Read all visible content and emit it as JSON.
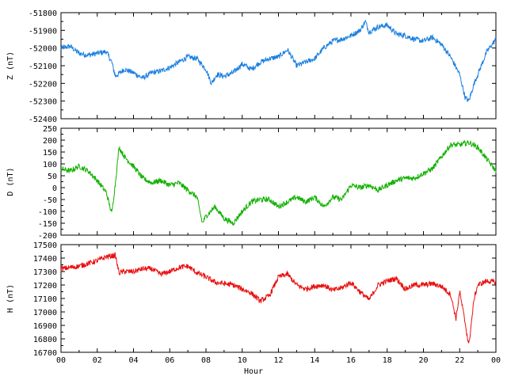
{
  "chart_data": [
    {
      "type": "line",
      "ylabel": "Z (nT)",
      "ylim": [
        -52400,
        -51800
      ],
      "yticks": [
        -52400,
        -52300,
        -52200,
        -52100,
        -52000,
        -51900,
        -51800
      ],
      "color": "#1a7fe0",
      "xlim": [
        0,
        24
      ],
      "series": [
        {
          "x": [
            0,
            0.5,
            1,
            1.5,
            2,
            2.5,
            2.8,
            3,
            3.5,
            4,
            4.5,
            5,
            5.5,
            6,
            6.5,
            7,
            7.5,
            8,
            8.3,
            8.6,
            9,
            9.5,
            10,
            10.5,
            11,
            11.5,
            12,
            12.5,
            13,
            13.5,
            14,
            14.5,
            15,
            15.5,
            16,
            16.5,
            16.8,
            17,
            17.5,
            18,
            18.5,
            19,
            19.5,
            20,
            20.5,
            21,
            21.5,
            22,
            22.3,
            22.5,
            22.8,
            23,
            23.5,
            24
          ],
          "y": [
            -52000,
            -51990,
            -52030,
            -52040,
            -52030,
            -52020,
            -52080,
            -52160,
            -52120,
            -52140,
            -52170,
            -52140,
            -52130,
            -52110,
            -52080,
            -52050,
            -52060,
            -52120,
            -52200,
            -52150,
            -52160,
            -52140,
            -52090,
            -52120,
            -52080,
            -52060,
            -52050,
            -52010,
            -52100,
            -52080,
            -52060,
            -52000,
            -51960,
            -51950,
            -51930,
            -51900,
            -51850,
            -51910,
            -51880,
            -51870,
            -51920,
            -51930,
            -51950,
            -51960,
            -51940,
            -51980,
            -52050,
            -52150,
            -52280,
            -52300,
            -52200,
            -52150,
            -52020,
            -51950
          ]
        }
      ]
    },
    {
      "type": "line",
      "ylabel": "D (nT)",
      "ylim": [
        -200,
        250
      ],
      "yticks": [
        -200,
        -150,
        -100,
        -50,
        0,
        50,
        100,
        150,
        200,
        250
      ],
      "color": "#11b000",
      "xlim": [
        0,
        24
      ],
      "series": [
        {
          "x": [
            0,
            0.5,
            1,
            1.5,
            2,
            2.5,
            2.8,
            3,
            3.2,
            3.5,
            4,
            4.5,
            5,
            5.5,
            6,
            6.5,
            7,
            7.5,
            7.8,
            8,
            8.5,
            9,
            9.5,
            10,
            10.5,
            11,
            11.5,
            12,
            12.5,
            13,
            13.5,
            14,
            14.5,
            15,
            15.5,
            16,
            16.5,
            17,
            17.5,
            18,
            18.5,
            19,
            19.5,
            20,
            20.5,
            21,
            21.5,
            22,
            22.5,
            23,
            23.5,
            24
          ],
          "y": [
            80,
            70,
            90,
            70,
            30,
            -20,
            -110,
            20,
            170,
            130,
            90,
            40,
            20,
            30,
            10,
            20,
            -10,
            -40,
            -150,
            -120,
            -80,
            -130,
            -150,
            -100,
            -60,
            -50,
            -50,
            -80,
            -60,
            -40,
            -60,
            -40,
            -80,
            -40,
            -50,
            10,
            0,
            10,
            -10,
            10,
            30,
            40,
            40,
            60,
            80,
            130,
            180,
            180,
            190,
            170,
            120,
            70
          ]
        }
      ]
    },
    {
      "type": "line",
      "ylabel": "H (nT)",
      "xlabel": "Hour",
      "ylim": [
        16700,
        17500
      ],
      "yticks": [
        16700,
        16800,
        16900,
        17000,
        17100,
        17200,
        17300,
        17400,
        17500
      ],
      "color": "#e81010",
      "xlim": [
        0,
        24
      ],
      "xticks": [
        "00",
        "02",
        "04",
        "06",
        "08",
        "10",
        "12",
        "14",
        "16",
        "18",
        "20",
        "22",
        "00"
      ],
      "series": [
        {
          "x": [
            0,
            0.5,
            1,
            1.5,
            2,
            2.5,
            3,
            3.2,
            3.5,
            4,
            4.5,
            5,
            5.5,
            6,
            6.5,
            7,
            7.5,
            8,
            8.5,
            9,
            9.5,
            10,
            10.5,
            11,
            11.5,
            12,
            12.5,
            13,
            13.5,
            14,
            14.5,
            15,
            15.5,
            16,
            16.5,
            17,
            17.5,
            18,
            18.5,
            19,
            19.5,
            20,
            20.5,
            21,
            21.5,
            21.8,
            22,
            22.3,
            22.5,
            22.8,
            23,
            23.5,
            24
          ],
          "y": [
            17320,
            17330,
            17340,
            17360,
            17380,
            17410,
            17420,
            17290,
            17300,
            17300,
            17320,
            17320,
            17280,
            17300,
            17330,
            17340,
            17290,
            17260,
            17220,
            17210,
            17200,
            17170,
            17140,
            17080,
            17120,
            17260,
            17280,
            17200,
            17170,
            17190,
            17200,
            17160,
            17180,
            17220,
            17150,
            17090,
            17200,
            17230,
            17250,
            17170,
            17200,
            17200,
            17210,
            17190,
            17130,
            16950,
            17150,
            16920,
            16750,
            17100,
            17200,
            17230,
            17220
          ]
        }
      ]
    }
  ]
}
